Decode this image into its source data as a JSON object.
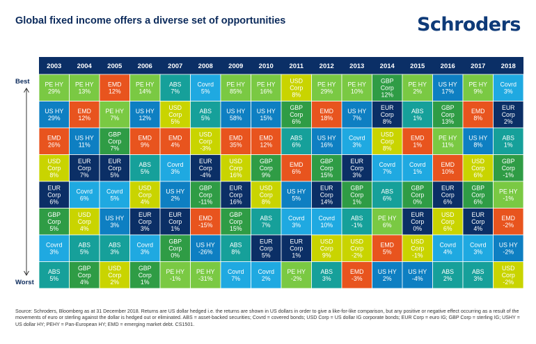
{
  "header": {
    "title": "Global fixed income offers a diverse set of opportunities",
    "logo": "Schroders"
  },
  "chart_data": {
    "type": "table",
    "title": "Global fixed income offers a diverse set of opportunities",
    "row_label_top": "Best",
    "row_label_bottom": "Worst",
    "years": [
      "2003",
      "2004",
      "2005",
      "2006",
      "2007",
      "2008",
      "2009",
      "2010",
      "2011",
      "2012",
      "2013",
      "2014",
      "2015",
      "2016",
      "2017",
      "2018"
    ],
    "asset_colors": {
      "PE HY": "#7ac943",
      "US HY": "#0e7fc2",
      "EMD": "#e8541e",
      "USD Corp": "#c9d400",
      "EUR Corp": "#0b2f66",
      "GBP Corp": "#2f9c45",
      "Covrd": "#1fa9e1",
      "ABS": "#16a09a"
    },
    "columns": [
      [
        [
          "PE HY",
          "29%"
        ],
        [
          "US HY",
          "29%"
        ],
        [
          "EMD",
          "26%"
        ],
        [
          "USD Corp",
          "8%"
        ],
        [
          "EUR Corp",
          "6%"
        ],
        [
          "GBP Corp",
          "5%"
        ],
        [
          "Covrd",
          "3%"
        ],
        [
          "ABS",
          "5%"
        ]
      ],
      [
        [
          "PE HY",
          "13%"
        ],
        [
          "EMD",
          "12%"
        ],
        [
          "US HY",
          "11%"
        ],
        [
          "EUR Corp",
          "7%"
        ],
        [
          "Covrd",
          "6%"
        ],
        [
          "USD Corp",
          "4%"
        ],
        [
          "ABS",
          "5%"
        ],
        [
          "GBP Corp",
          "4%"
        ]
      ],
      [
        [
          "EMD",
          "12%"
        ],
        [
          "PE HY",
          "7%"
        ],
        [
          "GBP Corp",
          "7%"
        ],
        [
          "EUR Corp",
          "5%"
        ],
        [
          "Covrd",
          "5%"
        ],
        [
          "US HY",
          "3%"
        ],
        [
          "ABS",
          "3%"
        ],
        [
          "USD Corp",
          "2%"
        ]
      ],
      [
        [
          "PE HY",
          "14%"
        ],
        [
          "US HY",
          "12%"
        ],
        [
          "EMD",
          "9%"
        ],
        [
          "ABS",
          "5%"
        ],
        [
          "USD Corp",
          "4%"
        ],
        [
          "EUR Corp",
          "3%"
        ],
        [
          "Covrd",
          "3%"
        ],
        [
          "GBP Corp",
          "1%"
        ]
      ],
      [
        [
          "ABS",
          "7%"
        ],
        [
          "USD Corp",
          "5%"
        ],
        [
          "EMD",
          "4%"
        ],
        [
          "Covrd",
          "3%"
        ],
        [
          "US HY",
          "2%"
        ],
        [
          "EUR Corp",
          "1%"
        ],
        [
          "GBP Corp",
          "0%"
        ],
        [
          "PE HY",
          "-1%"
        ]
      ],
      [
        [
          "Covrd",
          "5%"
        ],
        [
          "ABS",
          "5%"
        ],
        [
          "USD Corp",
          "-3%"
        ],
        [
          "EUR Corp",
          "-4%"
        ],
        [
          "GBP Corp",
          "-11%"
        ],
        [
          "EMD",
          "-15%"
        ],
        [
          "US HY",
          "-26%"
        ],
        [
          "PE HY",
          "-31%"
        ]
      ],
      [
        [
          "PE HY",
          "85%"
        ],
        [
          "US HY",
          "58%"
        ],
        [
          "EMD",
          "35%"
        ],
        [
          "USD Corp",
          "16%"
        ],
        [
          "EUR Corp",
          "16%"
        ],
        [
          "GBP Corp",
          "15%"
        ],
        [
          "ABS",
          "8%"
        ],
        [
          "Covrd",
          "7%"
        ]
      ],
      [
        [
          "PE HY",
          "16%"
        ],
        [
          "US HY",
          "15%"
        ],
        [
          "EMD",
          "12%"
        ],
        [
          "GBP Corp",
          "9%"
        ],
        [
          "USD Corp",
          "8%"
        ],
        [
          "ABS",
          "7%"
        ],
        [
          "EUR Corp",
          "5%"
        ],
        [
          "Covrd",
          "2%"
        ]
      ],
      [
        [
          "USD Corp",
          "8%"
        ],
        [
          "GBP Corp",
          "6%"
        ],
        [
          "ABS",
          "6%"
        ],
        [
          "EMD",
          "6%"
        ],
        [
          "US HY",
          "5%"
        ],
        [
          "Covrd",
          "3%"
        ],
        [
          "EUR Corp",
          "1%"
        ],
        [
          "PE HY",
          "-2%"
        ]
      ],
      [
        [
          "PE HY",
          "29%"
        ],
        [
          "EMD",
          "18%"
        ],
        [
          "US HY",
          "16%"
        ],
        [
          "GBP Corp",
          "15%"
        ],
        [
          "EUR Corp",
          "14%"
        ],
        [
          "Covrd",
          "10%"
        ],
        [
          "USD Corp",
          "9%"
        ],
        [
          "ABS",
          "3%"
        ]
      ],
      [
        [
          "PE HY",
          "10%"
        ],
        [
          "US HY",
          "7%"
        ],
        [
          "Covrd",
          "3%"
        ],
        [
          "EUR Corp",
          "3%"
        ],
        [
          "GBP Corp",
          "1%"
        ],
        [
          "ABS",
          "-1%"
        ],
        [
          "USD Corp",
          "-2%"
        ],
        [
          "EMD",
          "-3%"
        ]
      ],
      [
        [
          "GBP Corp",
          "12%"
        ],
        [
          "EUR Corp",
          "8%"
        ],
        [
          "USD Corp",
          "8%"
        ],
        [
          "Covrd",
          "7%"
        ],
        [
          "ABS",
          "6%"
        ],
        [
          "PE HY",
          "6%"
        ],
        [
          "EMD",
          "5%"
        ],
        [
          "US HY",
          "2%"
        ]
      ],
      [
        [
          "PE HY",
          "2%"
        ],
        [
          "ABS",
          "1%"
        ],
        [
          "EMD",
          "1%"
        ],
        [
          "Covrd",
          "1%"
        ],
        [
          "GBP Corp",
          "0%"
        ],
        [
          "EUR Corp",
          "0%"
        ],
        [
          "USD Corp",
          "-1%"
        ],
        [
          "US HY",
          "-4%"
        ]
      ],
      [
        [
          "US HY",
          "17%"
        ],
        [
          "GBP Corp",
          "13%"
        ],
        [
          "PE HY",
          "11%"
        ],
        [
          "EMD",
          "10%"
        ],
        [
          "EUR Corp",
          "6%"
        ],
        [
          "USD Corp",
          "6%"
        ],
        [
          "Covrd",
          "4%"
        ],
        [
          "ABS",
          "2%"
        ]
      ],
      [
        [
          "PE HY",
          "9%"
        ],
        [
          "EMD",
          "8%"
        ],
        [
          "US HY",
          "8%"
        ],
        [
          "USD Corp",
          "6%"
        ],
        [
          "GBP Corp",
          "6%"
        ],
        [
          "EUR Corp",
          "4%"
        ],
        [
          "Covrd",
          "3%"
        ],
        [
          "ABS",
          "3%"
        ]
      ],
      [
        [
          "Covrd",
          "3%"
        ],
        [
          "EUR Corp",
          "2%"
        ],
        [
          "ABS",
          "1%"
        ],
        [
          "GBP Corp",
          "-1%"
        ],
        [
          "PE HY",
          "-1%"
        ],
        [
          "EMD",
          "-2%"
        ],
        [
          "US HY",
          "-2%"
        ],
        [
          "USD Corp",
          "-2%"
        ]
      ]
    ]
  },
  "footnote": "Source: Schroders, Bloomberg as at 31 December 2018. Returns are US dollar hedged i.e. the returns are shown in US dollars in order to give a like-for-like comparison, but any positive or negative effect occurring as a result of the movements of euro or sterling against the dollar is hedged out or eliminated. ABS = asset-backed securities; Covrd = covered bonds; USD Corp = US dollar IG corporate bonds; EUR Corp = euro IG; GBP Corp = sterling IG; USHY = US dollar HY; PEHY = Pan-European HY; EMD = emerging market debt. CS1501."
}
